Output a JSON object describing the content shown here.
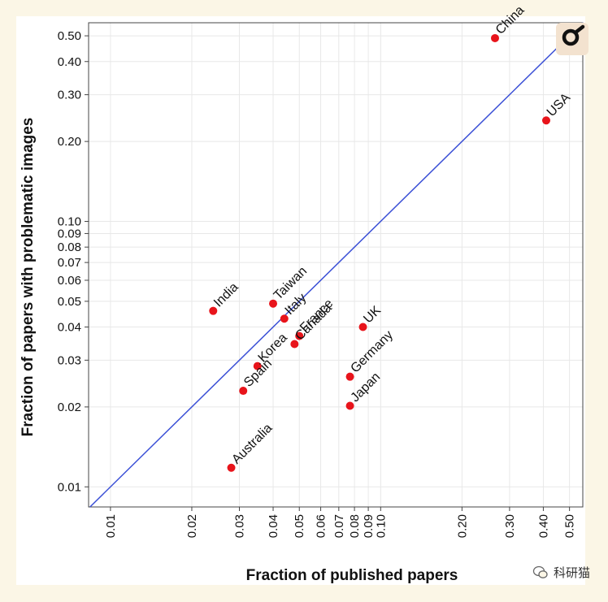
{
  "chart_data": {
    "type": "scatter",
    "xlabel": "Fraction of published papers",
    "ylabel": "Fraction of papers with problematic images",
    "x_scale": "log",
    "y_scale": "log",
    "xlim": [
      0.0083,
      0.56
    ],
    "ylim": [
      0.0084,
      0.56
    ],
    "x_ticks": [
      0.01,
      0.02,
      0.03,
      0.04,
      0.05,
      0.06,
      0.07,
      0.08,
      0.09,
      0.1,
      0.2,
      0.3,
      0.4,
      0.5
    ],
    "x_tick_labels": [
      "0.01",
      "0.02",
      "0.03",
      "0.04",
      "0.05",
      "0.06",
      "0.07",
      "0.08",
      "0.09",
      "0.10",
      "0.20",
      "0.30",
      "0.40",
      "0.50"
    ],
    "y_ticks": [
      0.01,
      0.02,
      0.03,
      0.04,
      0.05,
      0.06,
      0.07,
      0.08,
      0.09,
      0.1,
      0.2,
      0.3,
      0.4,
      0.5
    ],
    "y_tick_labels": [
      "0.01",
      "0.02",
      "0.03",
      "0.04",
      "0.05",
      "0.06",
      "0.07",
      "0.08",
      "0.09",
      "0.10",
      "0.20",
      "0.30",
      "0.40",
      "0.50"
    ],
    "reference_line": "y = x",
    "grid": true,
    "point_color": "#e8141b",
    "line_color": "#3b50d6",
    "points": [
      {
        "label": "China",
        "x": 0.265,
        "y": 0.49
      },
      {
        "label": "USA",
        "x": 0.41,
        "y": 0.24
      },
      {
        "label": "India",
        "x": 0.024,
        "y": 0.046
      },
      {
        "label": "Taiwan",
        "x": 0.04,
        "y": 0.049
      },
      {
        "label": "Italy",
        "x": 0.044,
        "y": 0.043
      },
      {
        "label": "France",
        "x": 0.05,
        "y": 0.037
      },
      {
        "label": "Canada",
        "x": 0.048,
        "y": 0.0345
      },
      {
        "label": "UK",
        "x": 0.086,
        "y": 0.04
      },
      {
        "label": "Korea",
        "x": 0.035,
        "y": 0.0285
      },
      {
        "label": "Spain",
        "x": 0.031,
        "y": 0.023
      },
      {
        "label": "Germany",
        "x": 0.077,
        "y": 0.026
      },
      {
        "label": "Japan",
        "x": 0.077,
        "y": 0.0202
      },
      {
        "label": "Australia",
        "x": 0.028,
        "y": 0.0118
      }
    ]
  },
  "watermark": {
    "text": "科研猫",
    "icon": "wechat-icon"
  },
  "badge": {
    "icon": "magnifier-logo-icon"
  }
}
